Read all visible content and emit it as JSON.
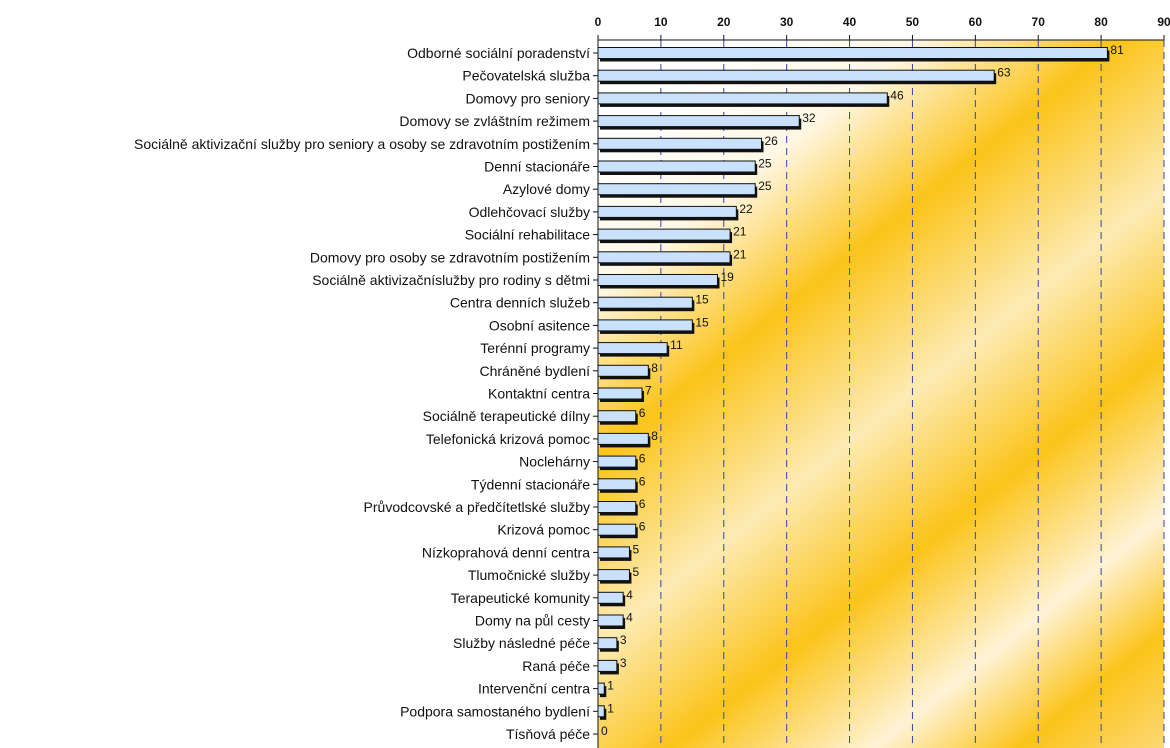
{
  "chart_data": {
    "type": "bar",
    "orientation": "horizontal",
    "categories": [
      "Odborné sociální poradenství",
      "Pečovatelská služba",
      "Domovy pro seniory",
      "Domovy se zvláštním režimem",
      "Sociálně aktivizační služby pro seniory a osoby se zdravotním postižením",
      "Denní stacionáře",
      "Azylové domy",
      "Odlehčovací služby",
      "Sociální rehabilitace",
      "Domovy pro osoby se zdravotním postižením",
      "Sociálně aktivizačníslužby pro rodiny s dětmi",
      "Centra denních služeb",
      "Osobní asitence",
      "Terénní programy",
      "Chráněné bydlení",
      "Kontaktní centra",
      "Sociálně terapeutické dílny",
      "Telefonická krizová pomoc",
      "Noclehárny",
      "Týdenní stacionáře",
      "Průvodcovské a předčítetlské služby",
      "Krizová pomoc",
      "Nízkoprahová denní centra",
      "Tlumočnické služby",
      "Terapeutické komunity",
      "Domy na půl cesty",
      "Služby následné péče",
      "Raná péče",
      "Intervenční centra",
      "Podpora samostaného bydlení",
      "Tísňová péče"
    ],
    "values": [
      81,
      63,
      46,
      32,
      26,
      25,
      25,
      22,
      21,
      21,
      19,
      15,
      15,
      11,
      8,
      7,
      6,
      8,
      6,
      6,
      6,
      6,
      5,
      5,
      4,
      4,
      3,
      3,
      1,
      1,
      0
    ],
    "xticks": [
      "0",
      "10",
      "20",
      "30",
      "40",
      "50",
      "60",
      "70",
      "80",
      "90"
    ],
    "xlim": [
      0,
      90
    ],
    "grid": true,
    "axis_position": "top",
    "colors": {
      "bar_fill": "#c9e1fa",
      "bar_shadow": "#111111",
      "gridline": "#3344aa",
      "bg_gold": "#fbc41a",
      "bg_light": "#fff7e2"
    }
  }
}
